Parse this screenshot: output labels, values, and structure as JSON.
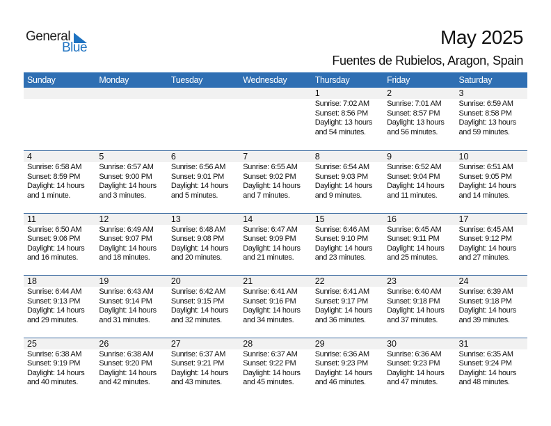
{
  "logo": {
    "general": "General",
    "blue": "Blue"
  },
  "header": {
    "title": "May 2025",
    "subtitle": "Fuentes de Rubielos, Aragon, Spain"
  },
  "colors": {
    "header_bg": "#2f6fb3",
    "band_bg": "#f1f1f1",
    "logo_blue": "#1f73c1"
  },
  "weekdays": [
    "Sunday",
    "Monday",
    "Tuesday",
    "Wednesday",
    "Thursday",
    "Friday",
    "Saturday"
  ],
  "weeks": [
    [
      null,
      null,
      null,
      null,
      {
        "day": "1",
        "sunrise": "Sunrise: 7:02 AM",
        "sunset": "Sunset: 8:56 PM",
        "daylight1": "Daylight: 13 hours",
        "daylight2": "and 54 minutes."
      },
      {
        "day": "2",
        "sunrise": "Sunrise: 7:01 AM",
        "sunset": "Sunset: 8:57 PM",
        "daylight1": "Daylight: 13 hours",
        "daylight2": "and 56 minutes."
      },
      {
        "day": "3",
        "sunrise": "Sunrise: 6:59 AM",
        "sunset": "Sunset: 8:58 PM",
        "daylight1": "Daylight: 13 hours",
        "daylight2": "and 59 minutes."
      }
    ],
    [
      {
        "day": "4",
        "sunrise": "Sunrise: 6:58 AM",
        "sunset": "Sunset: 8:59 PM",
        "daylight1": "Daylight: 14 hours",
        "daylight2": "and 1 minute."
      },
      {
        "day": "5",
        "sunrise": "Sunrise: 6:57 AM",
        "sunset": "Sunset: 9:00 PM",
        "daylight1": "Daylight: 14 hours",
        "daylight2": "and 3 minutes."
      },
      {
        "day": "6",
        "sunrise": "Sunrise: 6:56 AM",
        "sunset": "Sunset: 9:01 PM",
        "daylight1": "Daylight: 14 hours",
        "daylight2": "and 5 minutes."
      },
      {
        "day": "7",
        "sunrise": "Sunrise: 6:55 AM",
        "sunset": "Sunset: 9:02 PM",
        "daylight1": "Daylight: 14 hours",
        "daylight2": "and 7 minutes."
      },
      {
        "day": "8",
        "sunrise": "Sunrise: 6:54 AM",
        "sunset": "Sunset: 9:03 PM",
        "daylight1": "Daylight: 14 hours",
        "daylight2": "and 9 minutes."
      },
      {
        "day": "9",
        "sunrise": "Sunrise: 6:52 AM",
        "sunset": "Sunset: 9:04 PM",
        "daylight1": "Daylight: 14 hours",
        "daylight2": "and 11 minutes."
      },
      {
        "day": "10",
        "sunrise": "Sunrise: 6:51 AM",
        "sunset": "Sunset: 9:05 PM",
        "daylight1": "Daylight: 14 hours",
        "daylight2": "and 14 minutes."
      }
    ],
    [
      {
        "day": "11",
        "sunrise": "Sunrise: 6:50 AM",
        "sunset": "Sunset: 9:06 PM",
        "daylight1": "Daylight: 14 hours",
        "daylight2": "and 16 minutes."
      },
      {
        "day": "12",
        "sunrise": "Sunrise: 6:49 AM",
        "sunset": "Sunset: 9:07 PM",
        "daylight1": "Daylight: 14 hours",
        "daylight2": "and 18 minutes."
      },
      {
        "day": "13",
        "sunrise": "Sunrise: 6:48 AM",
        "sunset": "Sunset: 9:08 PM",
        "daylight1": "Daylight: 14 hours",
        "daylight2": "and 20 minutes."
      },
      {
        "day": "14",
        "sunrise": "Sunrise: 6:47 AM",
        "sunset": "Sunset: 9:09 PM",
        "daylight1": "Daylight: 14 hours",
        "daylight2": "and 21 minutes."
      },
      {
        "day": "15",
        "sunrise": "Sunrise: 6:46 AM",
        "sunset": "Sunset: 9:10 PM",
        "daylight1": "Daylight: 14 hours",
        "daylight2": "and 23 minutes."
      },
      {
        "day": "16",
        "sunrise": "Sunrise: 6:45 AM",
        "sunset": "Sunset: 9:11 PM",
        "daylight1": "Daylight: 14 hours",
        "daylight2": "and 25 minutes."
      },
      {
        "day": "17",
        "sunrise": "Sunrise: 6:45 AM",
        "sunset": "Sunset: 9:12 PM",
        "daylight1": "Daylight: 14 hours",
        "daylight2": "and 27 minutes."
      }
    ],
    [
      {
        "day": "18",
        "sunrise": "Sunrise: 6:44 AM",
        "sunset": "Sunset: 9:13 PM",
        "daylight1": "Daylight: 14 hours",
        "daylight2": "and 29 minutes."
      },
      {
        "day": "19",
        "sunrise": "Sunrise: 6:43 AM",
        "sunset": "Sunset: 9:14 PM",
        "daylight1": "Daylight: 14 hours",
        "daylight2": "and 31 minutes."
      },
      {
        "day": "20",
        "sunrise": "Sunrise: 6:42 AM",
        "sunset": "Sunset: 9:15 PM",
        "daylight1": "Daylight: 14 hours",
        "daylight2": "and 32 minutes."
      },
      {
        "day": "21",
        "sunrise": "Sunrise: 6:41 AM",
        "sunset": "Sunset: 9:16 PM",
        "daylight1": "Daylight: 14 hours",
        "daylight2": "and 34 minutes."
      },
      {
        "day": "22",
        "sunrise": "Sunrise: 6:41 AM",
        "sunset": "Sunset: 9:17 PM",
        "daylight1": "Daylight: 14 hours",
        "daylight2": "and 36 minutes."
      },
      {
        "day": "23",
        "sunrise": "Sunrise: 6:40 AM",
        "sunset": "Sunset: 9:18 PM",
        "daylight1": "Daylight: 14 hours",
        "daylight2": "and 37 minutes."
      },
      {
        "day": "24",
        "sunrise": "Sunrise: 6:39 AM",
        "sunset": "Sunset: 9:18 PM",
        "daylight1": "Daylight: 14 hours",
        "daylight2": "and 39 minutes."
      }
    ],
    [
      {
        "day": "25",
        "sunrise": "Sunrise: 6:38 AM",
        "sunset": "Sunset: 9:19 PM",
        "daylight1": "Daylight: 14 hours",
        "daylight2": "and 40 minutes."
      },
      {
        "day": "26",
        "sunrise": "Sunrise: 6:38 AM",
        "sunset": "Sunset: 9:20 PM",
        "daylight1": "Daylight: 14 hours",
        "daylight2": "and 42 minutes."
      },
      {
        "day": "27",
        "sunrise": "Sunrise: 6:37 AM",
        "sunset": "Sunset: 9:21 PM",
        "daylight1": "Daylight: 14 hours",
        "daylight2": "and 43 minutes."
      },
      {
        "day": "28",
        "sunrise": "Sunrise: 6:37 AM",
        "sunset": "Sunset: 9:22 PM",
        "daylight1": "Daylight: 14 hours",
        "daylight2": "and 45 minutes."
      },
      {
        "day": "29",
        "sunrise": "Sunrise: 6:36 AM",
        "sunset": "Sunset: 9:23 PM",
        "daylight1": "Daylight: 14 hours",
        "daylight2": "and 46 minutes."
      },
      {
        "day": "30",
        "sunrise": "Sunrise: 6:36 AM",
        "sunset": "Sunset: 9:23 PM",
        "daylight1": "Daylight: 14 hours",
        "daylight2": "and 47 minutes."
      },
      {
        "day": "31",
        "sunrise": "Sunrise: 6:35 AM",
        "sunset": "Sunset: 9:24 PM",
        "daylight1": "Daylight: 14 hours",
        "daylight2": "and 48 minutes."
      }
    ]
  ]
}
